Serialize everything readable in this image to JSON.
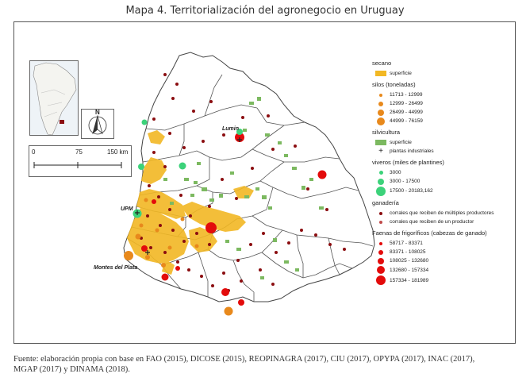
{
  "title": "Mapa 4. Territorialización del agronegocio en Uruguay",
  "caption_line1": "Fuente: elaboración propia con base en FAO (2015), DICOSE (2015), REOPINAGRA (2017), CIU (2017), OPYPA (2017), INAC (2017),",
  "caption_line2": "MGAP (2017) y DINAMA (2018).",
  "places": {
    "lumin": "Lumin",
    "upm": "UPM",
    "montes": "Montes del Plata"
  },
  "north_label": "N",
  "scale": {
    "l0": "0",
    "l1": "75",
    "l2": "150 km"
  },
  "legend": {
    "secano": {
      "title": "secano",
      "superficie": "superficie"
    },
    "silos": {
      "title": "silos (toneladas)",
      "items": [
        "11713 - 12999",
        "12999 - 26499",
        "26499 - 44999",
        "44999 - 76159"
      ]
    },
    "silvicultura": {
      "title": "silvicultura",
      "superficie": "superficie",
      "plantas": "plantas industriales"
    },
    "viveros": {
      "title": "viveros (miles de plantines)",
      "items": [
        "3000",
        "3000 - 17500",
        "17500 - 20183,162"
      ]
    },
    "ganaderia": {
      "title": "ganadería",
      "multi": "corrales que reciben de múltiples productores",
      "uno": "corrales que reciben de un productor"
    },
    "faenas": {
      "title": "Faenas de frigoríficos (cabezas de ganado)",
      "items": [
        "58717 - 83371",
        "83371 - 108025",
        "108025 - 132680",
        "132680 - 157334",
        "157334 - 181989"
      ]
    }
  },
  "colors": {
    "secano": "#f2b824",
    "silo": "#e8891c",
    "silvicultura": "#7cb960",
    "vivero": "#3cd27a",
    "ganado": "#8b0d10",
    "faena": "#e30b0b"
  }
}
